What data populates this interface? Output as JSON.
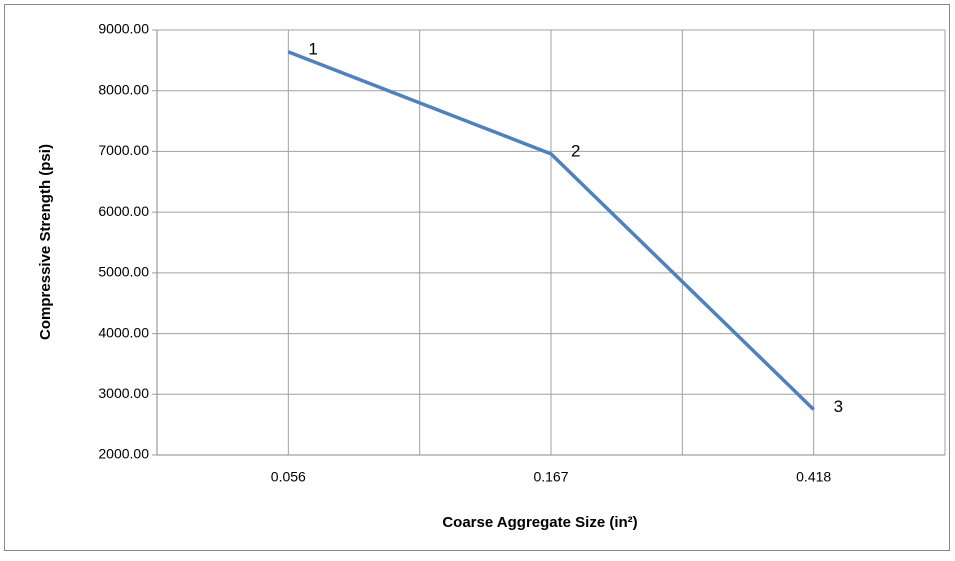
{
  "chart_data": {
    "type": "line",
    "x_label": "Coarse Aggregate Size (in²)",
    "y_label": "Compressive Strength (psi)",
    "categories": [
      "0.056",
      "0.167",
      "0.418"
    ],
    "series": [
      {
        "name": null,
        "color": "#4f81bd",
        "values": [
          8640,
          6960,
          2750
        ],
        "point_labels": [
          "1",
          "2",
          "3"
        ]
      }
    ],
    "ylim": [
      2000,
      9000
    ],
    "yticks": [
      {
        "value": 2000,
        "label": "2000.00"
      },
      {
        "value": 3000,
        "label": "3000.00"
      },
      {
        "value": 4000,
        "label": "4000.00"
      },
      {
        "value": 5000,
        "label": "5000.00"
      },
      {
        "value": 6000,
        "label": "6000.00"
      },
      {
        "value": 7000,
        "label": "7000.00"
      },
      {
        "value": 8000,
        "label": "8000.00"
      },
      {
        "value": 9000,
        "label": "9000.00"
      }
    ],
    "grid": true
  }
}
